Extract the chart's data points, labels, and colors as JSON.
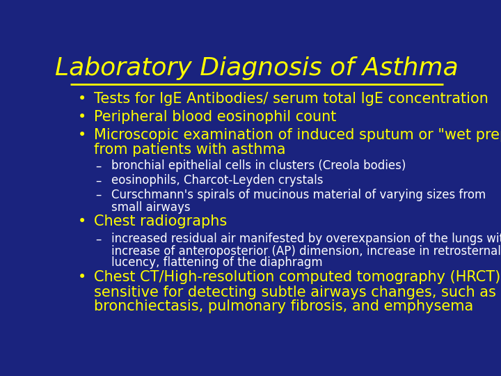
{
  "title": "Laboratory Diagnosis of Asthma",
  "title_color": "#FFFF00",
  "title_fontsize": 26,
  "background_color": "#1A237E",
  "line_color": "#FFFF00",
  "bullet_color": "#FFFF00",
  "sub_color": "#FFFFFF",
  "bullet_fontsize": 15,
  "sub_fontsize": 12,
  "bullets": [
    {
      "text": "Tests for IgE Antibodies/ serum total IgE concentration",
      "level": 0
    },
    {
      "text": "Peripheral blood eosinophil count",
      "level": 0
    },
    {
      "text": "Microscopic examination of induced sputum or \"wet preps\"\nfrom patients with asthma",
      "level": 0
    },
    {
      "text": "bronchial epithelial cells in clusters (Creola bodies)",
      "level": 1
    },
    {
      "text": "eosinophils, Charcot-Leyden crystals",
      "level": 1
    },
    {
      "text": "Curschmann's spirals of mucinous material of varying sizes from\nsmall airways",
      "level": 1
    },
    {
      "text": "Chest radiographs",
      "level": 0
    },
    {
      "text": "increased residual air manifested by overexpansion of the lungs with an\nincrease of anteroposterior (AP) dimension, increase in retrosternal\nlucency, flattening of the diaphragm",
      "level": 1
    },
    {
      "text": "Chest CT/High-resolution computed tomography (HRCT) :more\nsensitive for detecting subtle airways changes, such as early\nbronchiectasis, pulmonary fibrosis, and emphysema",
      "level": 0
    }
  ]
}
